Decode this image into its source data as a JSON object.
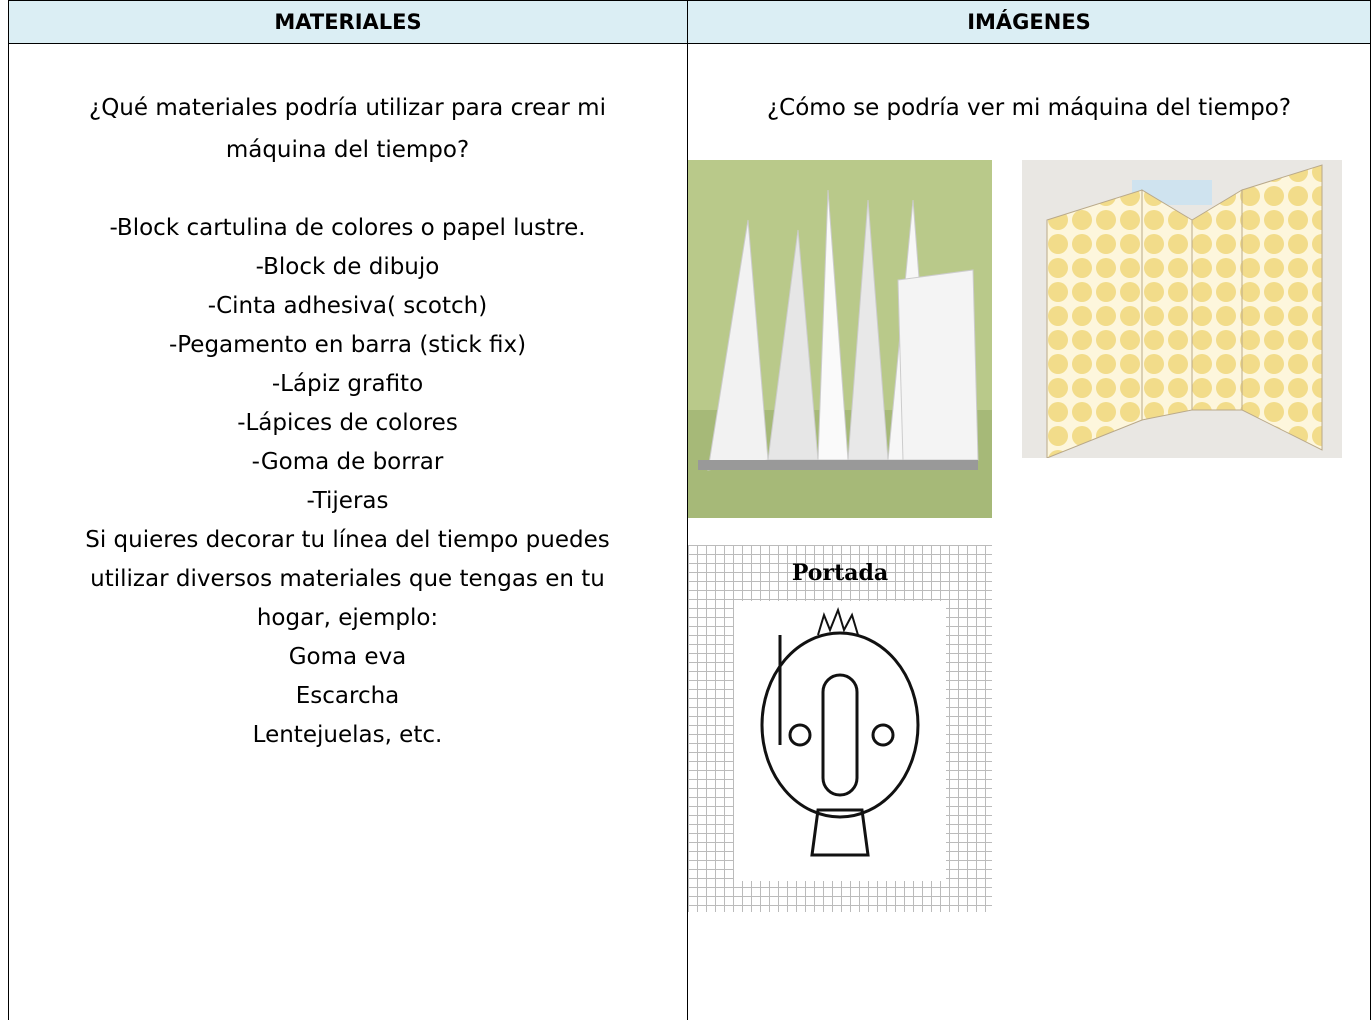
{
  "table": {
    "headers": [
      "MATERIALES",
      "IMÁGENES"
    ],
    "materials": {
      "question": [
        "¿Qué materiales podría utilizar para crear mi",
        "máquina del tiempo?"
      ],
      "items": [
        "-Block cartulina de colores o papel lustre.",
        "-Block de dibujo",
        "-Cinta adhesiva( scotch)",
        "-Pegamento en barra (stick fix)",
        "-Lápiz grafito",
        "-Lápices de colores",
        "-Goma de borrar",
        "-Tijeras"
      ],
      "note": [
        "Si quieres  decorar tu línea del tiempo puedes",
        "utilizar diversos materiales que tengas en tu",
        "hogar, ejemplo:"
      ],
      "extras": [
        "Goma eva",
        "Escarcha",
        "Lentejuelas, etc."
      ]
    },
    "images": {
      "question": "¿Cómo se podría ver mi máquina  del tiempo?",
      "cover_title": "Portada"
    }
  }
}
